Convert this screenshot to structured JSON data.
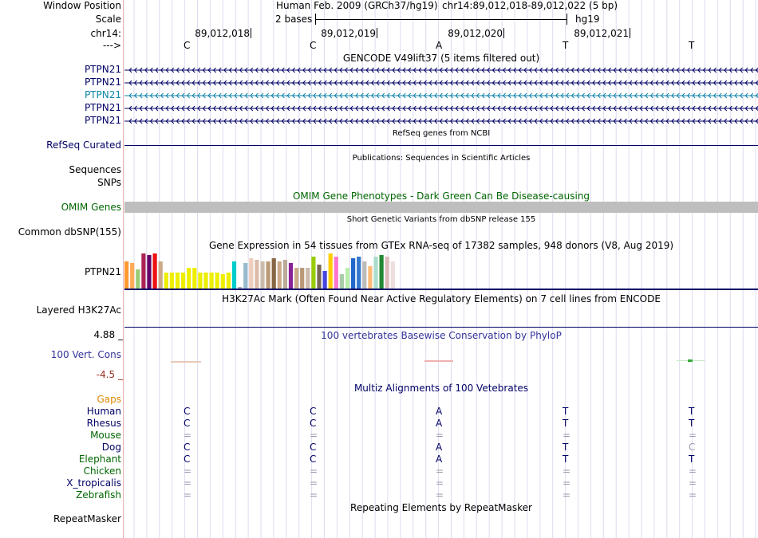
{
  "ruler": {
    "window_label": "Window Position",
    "window_value": "Human Feb. 2009 (GRCh37/hg19)",
    "window_coords": "chr14:89,012,018-89,012,022 (5 bp)",
    "scale_label": "Scale",
    "scale_value": "2 bases",
    "scale_assembly": "hg19",
    "chrom_label": "chr14:",
    "positions": [
      "89,012,018",
      "89,012,019",
      "89,012,020",
      "89,012,021"
    ],
    "strand_label": "--->",
    "bases": [
      "C",
      "C",
      "A",
      "T",
      "T"
    ]
  },
  "gencode": {
    "title": "GENCODE V49lift37 (5 items filtered out)",
    "items": [
      "PTPN21",
      "PTPN21",
      "PTPN21",
      "PTPN21",
      "PTPN21"
    ],
    "colors": [
      "#000066",
      "#000066",
      "#0e84a8",
      "#000066",
      "#000066"
    ]
  },
  "refseq": {
    "title": "RefSeq genes from NCBI",
    "label": "RefSeq Curated"
  },
  "pubs": {
    "title": "Publications: Sequences in Scientific Articles",
    "label1": "Sequences",
    "label2": "SNPs"
  },
  "omim": {
    "title": "OMIM Gene Phenotypes - Dark Green Can Be Disease-causing",
    "label": "OMIM Genes"
  },
  "dbsnp": {
    "title": "Short Genetic Variants from dbSNP release 155",
    "label": "Common dbSNP(155)"
  },
  "gtex": {
    "title": "Gene Expression in 54 tissues from GTEx RNA-seq of 17382 samples, 948 donors (V8, Aug 2019)",
    "label": "PTPN21",
    "bars": [
      {
        "v": 0.9,
        "c": "#ff9933"
      },
      {
        "v": 0.85,
        "c": "#ffaa55"
      },
      {
        "v": 0.65,
        "c": "#99cc77"
      },
      {
        "v": 1.15,
        "c": "#aa2255"
      },
      {
        "v": 1.1,
        "c": "#660066"
      },
      {
        "v": 1.15,
        "c": "#ee1111"
      },
      {
        "v": 0.9,
        "c": "#ccaa88"
      },
      {
        "v": 0.55,
        "c": "#eeee00"
      },
      {
        "v": 0.55,
        "c": "#eeee00"
      },
      {
        "v": 0.55,
        "c": "#eeee00"
      },
      {
        "v": 0.55,
        "c": "#eeee00"
      },
      {
        "v": 0.7,
        "c": "#eeee00"
      },
      {
        "v": 0.7,
        "c": "#eeee00"
      },
      {
        "v": 0.55,
        "c": "#eeee00"
      },
      {
        "v": 0.55,
        "c": "#eeee00"
      },
      {
        "v": 0.55,
        "c": "#eeee00"
      },
      {
        "v": 0.55,
        "c": "#eeee00"
      },
      {
        "v": 0.5,
        "c": "#eeee00"
      },
      {
        "v": 0.55,
        "c": "#eeee00"
      },
      {
        "v": 0.9,
        "c": "#00cccc"
      },
      {
        "v": 0.1,
        "c": "#aaaaaa"
      },
      {
        "v": 0.85,
        "c": "#99bbcc"
      },
      {
        "v": 1.0,
        "c": "#eeccbb"
      },
      {
        "v": 0.95,
        "c": "#ddbbaa"
      },
      {
        "v": 0.9,
        "c": "#ccbbaa"
      },
      {
        "v": 0.9,
        "c": "#bb9977"
      },
      {
        "v": 1.0,
        "c": "#886644"
      },
      {
        "v": 0.9,
        "c": "#ccaa88"
      },
      {
        "v": 0.95,
        "c": "#bbaa99"
      },
      {
        "v": 0.85,
        "c": "#882299"
      },
      {
        "v": 0.7,
        "c": "#ccaa88"
      },
      {
        "v": 0.7,
        "c": "#bb9977"
      },
      {
        "v": 0.7,
        "c": "#ccbbaa"
      },
      {
        "v": 1.05,
        "c": "#99cc00"
      },
      {
        "v": 0.8,
        "c": "#776655"
      },
      {
        "v": 0.6,
        "c": "#4444dd"
      },
      {
        "v": 1.15,
        "c": "#ffcc00"
      },
      {
        "v": 1.05,
        "c": "#ff77cc"
      },
      {
        "v": 0.5,
        "c": "#aaccaa"
      },
      {
        "v": 0.7,
        "c": "#bbeeaa"
      },
      {
        "v": 1.0,
        "c": "#2266cc"
      },
      {
        "v": 1.05,
        "c": "#3377cc"
      },
      {
        "v": 0.9,
        "c": "#bbbbbb"
      },
      {
        "v": 0.75,
        "c": "#ffbb77"
      },
      {
        "v": 1.05,
        "c": "#aaddcc"
      },
      {
        "v": 1.1,
        "c": "#228833"
      },
      {
        "v": 1.05,
        "c": "#ddbbbb"
      },
      {
        "v": 0.9,
        "c": "#eedddd"
      }
    ]
  },
  "h3k27ac": {
    "title": "H3K27Ac Mark (Often Found Near Active Regulatory Elements) on 7 cell lines from ENCODE",
    "label": "Layered H3K27Ac"
  },
  "cons": {
    "title": "100 vertebrates Basewise Conservation by PhyloP",
    "label": "100 Vert. Cons",
    "max_label": "4.88 _",
    "min_label": "-4.5 _"
  },
  "multiz": {
    "title": "Multiz Alignments of 100 Vetebrates",
    "gaps_label": "Gaps",
    "species": [
      {
        "name": "Human",
        "color": "#000066",
        "bases": [
          "C",
          "C",
          "A",
          "T",
          "T"
        ]
      },
      {
        "name": "Rhesus",
        "color": "#000066",
        "bases": [
          "C",
          "C",
          "A",
          "T",
          "T"
        ]
      },
      {
        "name": "Mouse",
        "color": "#006600",
        "bases": [
          "=",
          "=",
          "=",
          "=",
          "="
        ]
      },
      {
        "name": "Dog",
        "color": "#000066",
        "bases": [
          "C",
          "C",
          "A",
          "T",
          "C"
        ]
      },
      {
        "name": "Elephant",
        "color": "#006600",
        "bases": [
          "C",
          "C",
          "A",
          "T",
          "T"
        ]
      },
      {
        "name": "Chicken",
        "color": "#006600",
        "bases": [
          "=",
          "=",
          "=",
          "=",
          "="
        ]
      },
      {
        "name": "X_tropicalis",
        "color": "#000066",
        "bases": [
          "=",
          "=",
          "=",
          "=",
          "="
        ]
      },
      {
        "name": "Zebrafish",
        "color": "#006600",
        "bases": [
          "=",
          "=",
          "=",
          "=",
          "="
        ]
      }
    ]
  },
  "rmsk": {
    "title": "Repeating Elements by RepeatMasker",
    "label": "RepeatMasker"
  }
}
